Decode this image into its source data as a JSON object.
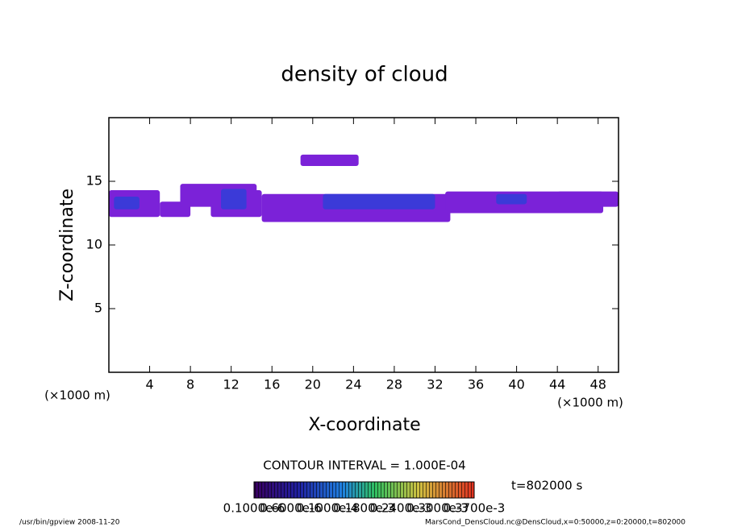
{
  "chart_data": {
    "type": "contour",
    "title": "density of cloud",
    "x_label": "X-coordinate",
    "y_label": "Z-coordinate",
    "x_unit": "(×1000 m)",
    "y_unit": "(×1000 m)",
    "xlim": [
      0,
      50
    ],
    "ylim": [
      0,
      20
    ],
    "xticks": [
      4,
      8,
      12,
      16,
      20,
      24,
      28,
      32,
      36,
      40,
      44,
      48
    ],
    "yticks": [
      5,
      10,
      15
    ],
    "patches": [
      {
        "x": [
          0,
          5
        ],
        "z": [
          12.2,
          14.3
        ],
        "color": "#7b22d8"
      },
      {
        "x": [
          5,
          8
        ],
        "z": [
          12.2,
          13.4
        ],
        "color": "#7b22d8"
      },
      {
        "x": [
          7,
          14.5
        ],
        "z": [
          13.0,
          14.8
        ],
        "color": "#7b22d8"
      },
      {
        "x": [
          10,
          15
        ],
        "z": [
          12.2,
          14.3
        ],
        "color": "#7b22d8"
      },
      {
        "x": [
          15,
          33.5
        ],
        "z": [
          11.8,
          14.0
        ],
        "color": "#7b22d8"
      },
      {
        "x": [
          33,
          48.5
        ],
        "z": [
          12.5,
          14.2
        ],
        "color": "#7b22d8"
      },
      {
        "x": [
          44,
          50
        ],
        "z": [
          13.0,
          14.2
        ],
        "color": "#7b22d8"
      },
      {
        "x": [
          18.8,
          24.5
        ],
        "z": [
          16.2,
          17.1
        ],
        "color": "#7b22d8"
      },
      {
        "x": [
          0.5,
          3
        ],
        "z": [
          12.8,
          13.8
        ],
        "color": "#3b3ad8"
      },
      {
        "x": [
          11,
          13.5
        ],
        "z": [
          12.8,
          14.4
        ],
        "color": "#3b3ad8"
      },
      {
        "x": [
          21,
          32
        ],
        "z": [
          12.8,
          14.0
        ],
        "color": "#3b3ad8"
      },
      {
        "x": [
          38,
          41
        ],
        "z": [
          13.2,
          14.0
        ],
        "color": "#3b3ad8"
      }
    ],
    "contour_interval": "CONTOUR INTERVAL = 1.000E-04",
    "time_label": "t=802000 s",
    "colorbar_labels": [
      "0.1000e-6",
      "0.6000e-6",
      "0.1000e-4",
      "0.1800e-3",
      "0.2400e-3",
      "0.3000e-3",
      "0.3700e-3"
    ],
    "footer_left": "/usr/bin/gpview   2008-11-20",
    "footer_right": "MarsCond_DensCloud.nc@DensCloud,x=0:50000,z=0:20000,t=802000"
  }
}
